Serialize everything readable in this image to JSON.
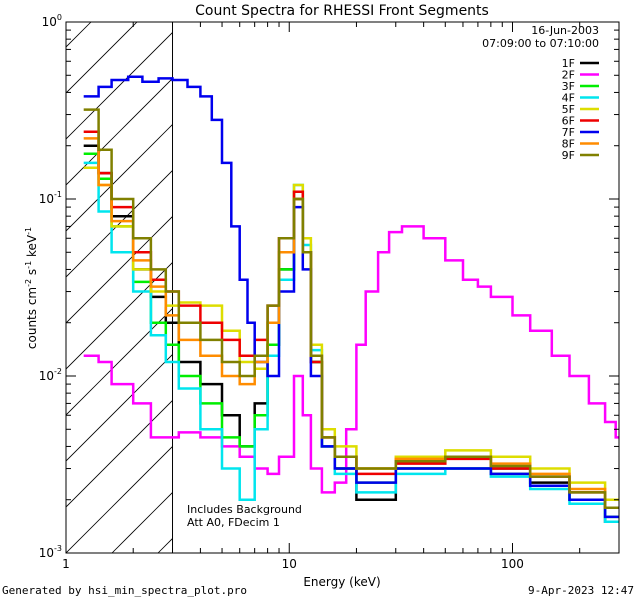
{
  "footer": {
    "generated_by": "Generated by hsi_min_spectra_plot.pro",
    "print_date": "9-Apr-2023 12:47"
  },
  "chart_data": {
    "type": "line",
    "title": "Count Spectra for RHESSI Front Segments",
    "xlabel": "Energy (keV)",
    "ylabel_parts": {
      "main": "counts cm",
      "exp1": "-2",
      "s": " s",
      "exp2": "-1",
      "kev": " keV",
      "exp3": "-1"
    },
    "xscale": "log",
    "yscale": "log",
    "xlim": [
      1,
      300
    ],
    "ylim": [
      0.001,
      1
    ],
    "x_tick_labels": [
      {
        "value": 1,
        "label": "1"
      },
      {
        "value": 10,
        "label": "10"
      },
      {
        "value": 100,
        "label": "100"
      }
    ],
    "y_tick_labels": [
      {
        "value": 1,
        "base": "10",
        "exp": "0"
      },
      {
        "value": 0.1,
        "base": "10",
        "exp": "-1"
      },
      {
        "value": 0.01,
        "base": "10",
        "exp": "-2"
      },
      {
        "value": 0.001,
        "base": "10",
        "exp": "-3"
      }
    ],
    "date": "16-Jun-2003",
    "time_range": "07:09:00 to 07:10:00",
    "annotations": [
      "Includes Background",
      "Att A0, FDecim 1"
    ],
    "hatched_region_max_kev": 3,
    "series": [
      {
        "name": "1F",
        "color": "#000000",
        "values": [
          [
            1.2,
            0.2
          ],
          [
            1.4,
            0.14
          ],
          [
            1.6,
            0.08
          ],
          [
            2.0,
            0.04
          ],
          [
            2.4,
            0.028
          ],
          [
            2.8,
            0.02
          ],
          [
            3.2,
            0.012
          ],
          [
            4.0,
            0.009
          ],
          [
            5.0,
            0.006
          ],
          [
            6.0,
            0.004
          ],
          [
            7.0,
            0.007
          ],
          [
            8.0,
            0.015
          ],
          [
            9.0,
            0.04
          ],
          [
            10.5,
            0.1
          ],
          [
            11.5,
            0.05
          ],
          [
            12.5,
            0.012
          ],
          [
            14,
            0.004
          ],
          [
            16,
            0.003
          ],
          [
            20,
            0.002
          ],
          [
            30,
            0.003
          ],
          [
            50,
            0.003
          ],
          [
            80,
            0.003
          ],
          [
            120,
            0.0025
          ],
          [
            180,
            0.002
          ],
          [
            260,
            0.0015
          ]
        ]
      },
      {
        "name": "2F",
        "color": "#ff00ff",
        "values": [
          [
            1.2,
            0.013
          ],
          [
            1.4,
            0.012
          ],
          [
            1.6,
            0.009
          ],
          [
            2.0,
            0.007
          ],
          [
            2.4,
            0.0045
          ],
          [
            2.8,
            0.0045
          ],
          [
            3.2,
            0.0048
          ],
          [
            4.0,
            0.0045
          ],
          [
            5.0,
            0.004
          ],
          [
            6.0,
            0.0035
          ],
          [
            7.0,
            0.003
          ],
          [
            8.0,
            0.0028
          ],
          [
            9.0,
            0.0035
          ],
          [
            10.5,
            0.01
          ],
          [
            11.5,
            0.006
          ],
          [
            12.5,
            0.003
          ],
          [
            14,
            0.0022
          ],
          [
            16,
            0.0025
          ],
          [
            18,
            0.005
          ],
          [
            20,
            0.015
          ],
          [
            22,
            0.03
          ],
          [
            25,
            0.05
          ],
          [
            28,
            0.065
          ],
          [
            32,
            0.07
          ],
          [
            40,
            0.06
          ],
          [
            50,
            0.045
          ],
          [
            60,
            0.035
          ],
          [
            70,
            0.032
          ],
          [
            80,
            0.028
          ],
          [
            100,
            0.022
          ],
          [
            120,
            0.018
          ],
          [
            150,
            0.013
          ],
          [
            180,
            0.01
          ],
          [
            220,
            0.007
          ],
          [
            260,
            0.0055
          ],
          [
            290,
            0.0045
          ]
        ]
      },
      {
        "name": "3F",
        "color": "#00ee00",
        "values": [
          [
            1.2,
            0.18
          ],
          [
            1.4,
            0.13
          ],
          [
            1.6,
            0.07
          ],
          [
            2.0,
            0.034
          ],
          [
            2.4,
            0.02
          ],
          [
            2.8,
            0.015
          ],
          [
            3.2,
            0.01
          ],
          [
            4.0,
            0.007
          ],
          [
            5.0,
            0.0045
          ],
          [
            6.0,
            0.004
          ],
          [
            7.0,
            0.006
          ],
          [
            8.0,
            0.015
          ],
          [
            9.0,
            0.04
          ],
          [
            10.5,
            0.11
          ],
          [
            11.5,
            0.05
          ],
          [
            12.5,
            0.012
          ],
          [
            14,
            0.004
          ],
          [
            16,
            0.003
          ],
          [
            20,
            0.0025
          ],
          [
            30,
            0.003
          ],
          [
            50,
            0.003
          ],
          [
            80,
            0.0028
          ],
          [
            120,
            0.0024
          ],
          [
            180,
            0.002
          ],
          [
            260,
            0.0016
          ]
        ]
      },
      {
        "name": "4F",
        "color": "#00e5ee",
        "values": [
          [
            1.2,
            0.16
          ],
          [
            1.4,
            0.085
          ],
          [
            1.6,
            0.05
          ],
          [
            2.0,
            0.03
          ],
          [
            2.4,
            0.017
          ],
          [
            2.8,
            0.012
          ],
          [
            3.2,
            0.0085
          ],
          [
            4.0,
            0.005
          ],
          [
            5.0,
            0.003
          ],
          [
            6.0,
            0.002
          ],
          [
            7.0,
            0.005
          ],
          [
            8.0,
            0.013
          ],
          [
            9.0,
            0.035
          ],
          [
            10.5,
            0.12
          ],
          [
            11.5,
            0.055
          ],
          [
            12.5,
            0.014
          ],
          [
            14,
            0.004
          ],
          [
            16,
            0.0028
          ],
          [
            20,
            0.0022
          ],
          [
            30,
            0.0028
          ],
          [
            50,
            0.003
          ],
          [
            80,
            0.0027
          ],
          [
            120,
            0.0023
          ],
          [
            180,
            0.0019
          ],
          [
            260,
            0.0015
          ]
        ]
      },
      {
        "name": "5F",
        "color": "#dddd00",
        "values": [
          [
            1.2,
            0.15
          ],
          [
            1.4,
            0.12
          ],
          [
            1.6,
            0.07
          ],
          [
            2.0,
            0.04
          ],
          [
            2.4,
            0.03
          ],
          [
            2.8,
            0.025
          ],
          [
            3.2,
            0.026
          ],
          [
            4.0,
            0.025
          ],
          [
            5.0,
            0.018
          ],
          [
            6.0,
            0.012
          ],
          [
            7.0,
            0.011
          ],
          [
            8.0,
            0.02
          ],
          [
            9.0,
            0.05
          ],
          [
            10.5,
            0.12
          ],
          [
            11.5,
            0.06
          ],
          [
            12.5,
            0.015
          ],
          [
            14,
            0.005
          ],
          [
            16,
            0.004
          ],
          [
            20,
            0.003
          ],
          [
            30,
            0.0035
          ],
          [
            50,
            0.0038
          ],
          [
            80,
            0.0035
          ],
          [
            120,
            0.003
          ],
          [
            180,
            0.0025
          ],
          [
            260,
            0.002
          ]
        ]
      },
      {
        "name": "6F",
        "color": "#ee0000",
        "values": [
          [
            1.2,
            0.24
          ],
          [
            1.4,
            0.14
          ],
          [
            1.6,
            0.09
          ],
          [
            2.0,
            0.05
          ],
          [
            2.4,
            0.035
          ],
          [
            2.8,
            0.03
          ],
          [
            3.2,
            0.025
          ],
          [
            4.0,
            0.02
          ],
          [
            5.0,
            0.016
          ],
          [
            6.0,
            0.013
          ],
          [
            7.0,
            0.016
          ],
          [
            8.0,
            0.025
          ],
          [
            9.0,
            0.06
          ],
          [
            10.5,
            0.11
          ],
          [
            11.5,
            0.05
          ],
          [
            12.5,
            0.012
          ],
          [
            14,
            0.0045
          ],
          [
            16,
            0.0035
          ],
          [
            20,
            0.0028
          ],
          [
            30,
            0.0032
          ],
          [
            50,
            0.0034
          ],
          [
            80,
            0.003
          ],
          [
            120,
            0.0027
          ],
          [
            180,
            0.0022
          ],
          [
            260,
            0.0018
          ]
        ]
      },
      {
        "name": "7F",
        "color": "#0000ee",
        "values": [
          [
            1.2,
            0.38
          ],
          [
            1.4,
            0.43
          ],
          [
            1.6,
            0.47
          ],
          [
            1.9,
            0.49
          ],
          [
            2.2,
            0.46
          ],
          [
            2.6,
            0.48
          ],
          [
            3.0,
            0.47
          ],
          [
            3.5,
            0.43
          ],
          [
            4.0,
            0.38
          ],
          [
            4.5,
            0.28
          ],
          [
            5.0,
            0.16
          ],
          [
            5.5,
            0.07
          ],
          [
            6.0,
            0.035
          ],
          [
            6.5,
            0.02
          ],
          [
            7.0,
            0.012
          ],
          [
            8.0,
            0.01
          ],
          [
            9.0,
            0.03
          ],
          [
            10.5,
            0.09
          ],
          [
            11.5,
            0.04
          ],
          [
            12.5,
            0.01
          ],
          [
            14,
            0.004
          ],
          [
            16,
            0.003
          ],
          [
            20,
            0.0025
          ],
          [
            30,
            0.003
          ],
          [
            50,
            0.003
          ],
          [
            80,
            0.0028
          ],
          [
            120,
            0.0024
          ],
          [
            180,
            0.002
          ],
          [
            260,
            0.0016
          ]
        ]
      },
      {
        "name": "8F",
        "color": "#ff8c00",
        "values": [
          [
            1.2,
            0.22
          ],
          [
            1.4,
            0.12
          ],
          [
            1.6,
            0.075
          ],
          [
            2.0,
            0.045
          ],
          [
            2.4,
            0.032
          ],
          [
            2.8,
            0.022
          ],
          [
            3.2,
            0.016
          ],
          [
            4.0,
            0.013
          ],
          [
            5.0,
            0.01
          ],
          [
            6.0,
            0.009
          ],
          [
            7.0,
            0.012
          ],
          [
            8.0,
            0.02
          ],
          [
            9.0,
            0.05
          ],
          [
            10.5,
            0.1
          ],
          [
            11.5,
            0.05
          ],
          [
            12.5,
            0.013
          ],
          [
            14,
            0.0045
          ],
          [
            16,
            0.0035
          ],
          [
            20,
            0.003
          ],
          [
            30,
            0.0034
          ],
          [
            50,
            0.0035
          ],
          [
            80,
            0.0032
          ],
          [
            120,
            0.0028
          ],
          [
            180,
            0.0023
          ],
          [
            260,
            0.0018
          ]
        ]
      },
      {
        "name": "9F",
        "color": "#808000",
        "values": [
          [
            1.2,
            0.32
          ],
          [
            1.4,
            0.19
          ],
          [
            1.6,
            0.1
          ],
          [
            2.0,
            0.06
          ],
          [
            2.4,
            0.04
          ],
          [
            2.8,
            0.03
          ],
          [
            3.2,
            0.02
          ],
          [
            4.0,
            0.016
          ],
          [
            5.0,
            0.012
          ],
          [
            6.0,
            0.01
          ],
          [
            7.0,
            0.013
          ],
          [
            8.0,
            0.025
          ],
          [
            9.0,
            0.06
          ],
          [
            10.5,
            0.1
          ],
          [
            11.5,
            0.05
          ],
          [
            12.5,
            0.013
          ],
          [
            14,
            0.0045
          ],
          [
            16,
            0.0035
          ],
          [
            20,
            0.003
          ],
          [
            30,
            0.0033
          ],
          [
            50,
            0.0035
          ],
          [
            80,
            0.0031
          ],
          [
            120,
            0.0027
          ],
          [
            180,
            0.0022
          ],
          [
            260,
            0.0018
          ]
        ]
      }
    ]
  }
}
